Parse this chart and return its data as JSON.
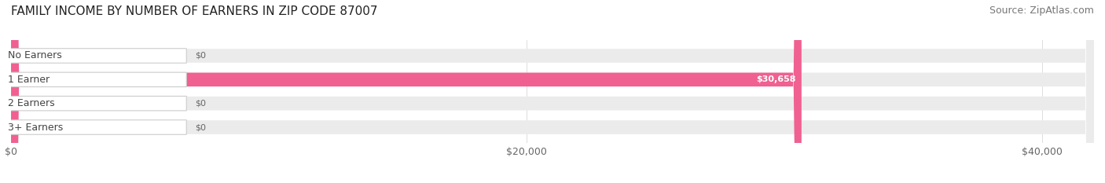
{
  "title": "FAMILY INCOME BY NUMBER OF EARNERS IN ZIP CODE 87007",
  "source": "Source: ZipAtlas.com",
  "categories": [
    "No Earners",
    "1 Earner",
    "2 Earners",
    "3+ Earners"
  ],
  "values": [
    0,
    30658,
    0,
    0
  ],
  "bar_colors": [
    "#b0b8e0",
    "#f06090",
    "#f0c080",
    "#f0a0a0"
  ],
  "bar_bg_color": "#ebebeb",
  "value_labels": [
    "$0",
    "$30,658",
    "$0",
    "$0"
  ],
  "xlim_max": 42000,
  "xticks": [
    0,
    20000,
    40000
  ],
  "xtick_labels": [
    "$0",
    "$20,000",
    "$40,000"
  ],
  "title_fontsize": 11,
  "source_fontsize": 9,
  "label_fontsize": 9,
  "value_label_fontsize": 8,
  "tick_fontsize": 9,
  "background_color": "#ffffff",
  "label_box_color": "#ffffff",
  "label_text_color": "#444444",
  "value_text_color_dark": "#666666",
  "value_text_color_light": "#ffffff"
}
